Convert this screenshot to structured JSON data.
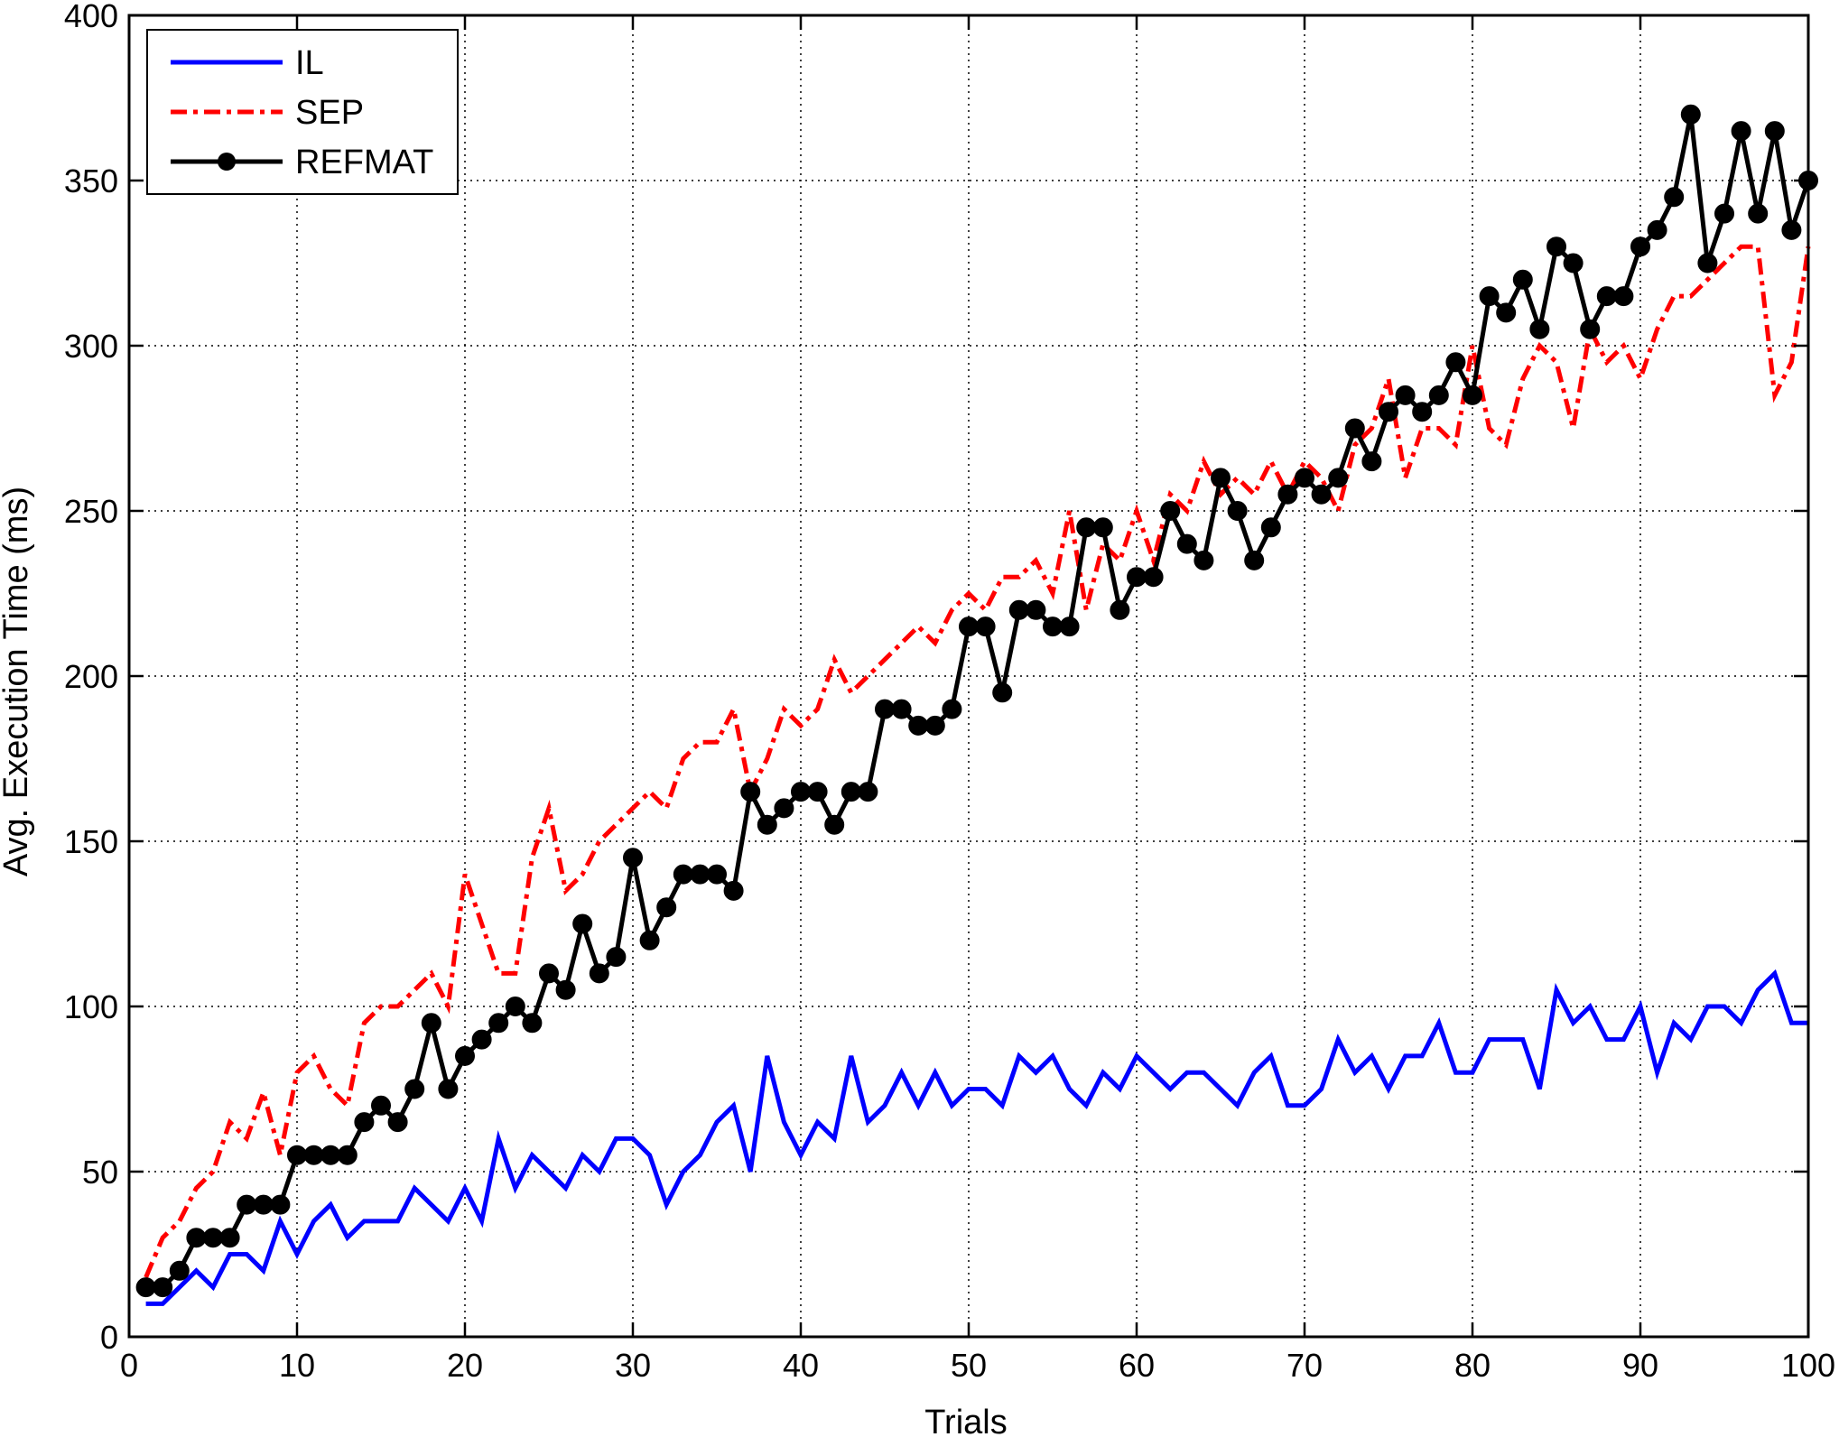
{
  "chart_data": {
    "type": "line",
    "xlabel": "Trials",
    "ylabel": "Avg. Execution Time (ms)",
    "xlim": [
      0,
      100
    ],
    "ylim": [
      0,
      400
    ],
    "xticks": [
      0,
      10,
      20,
      30,
      40,
      50,
      60,
      70,
      80,
      90,
      100
    ],
    "yticks": [
      0,
      50,
      100,
      150,
      200,
      250,
      300,
      350,
      400
    ],
    "xtick_labels": [
      "0",
      "10",
      "20",
      "30",
      "40",
      "50",
      "60",
      "70",
      "80",
      "90",
      "100"
    ],
    "ytick_labels": [
      "0",
      "50",
      "100",
      "150",
      "200",
      "250",
      "300",
      "350",
      "400"
    ],
    "grid": true,
    "legend_position": "top-left",
    "x": [
      1,
      2,
      3,
      4,
      5,
      6,
      7,
      8,
      9,
      10,
      11,
      12,
      13,
      14,
      15,
      16,
      17,
      18,
      19,
      20,
      21,
      22,
      23,
      24,
      25,
      26,
      27,
      28,
      29,
      30,
      31,
      32,
      33,
      34,
      35,
      36,
      37,
      38,
      39,
      40,
      41,
      42,
      43,
      44,
      45,
      46,
      47,
      48,
      49,
      50,
      51,
      52,
      53,
      54,
      55,
      56,
      57,
      58,
      59,
      60,
      61,
      62,
      63,
      64,
      65,
      66,
      67,
      68,
      69,
      70,
      71,
      72,
      73,
      74,
      75,
      76,
      77,
      78,
      79,
      80,
      81,
      82,
      83,
      84,
      85,
      86,
      87,
      88,
      89,
      90,
      91,
      92,
      93,
      94,
      95,
      96,
      97,
      98,
      99,
      100
    ],
    "series": [
      {
        "name": "IL",
        "color": "#0000ff",
        "style": "solid",
        "values": [
          10,
          10,
          15,
          20,
          15,
          25,
          25,
          20,
          35,
          25,
          35,
          40,
          30,
          35,
          35,
          35,
          45,
          40,
          35,
          45,
          35,
          60,
          45,
          55,
          50,
          45,
          55,
          50,
          60,
          60,
          55,
          40,
          50,
          55,
          65,
          70,
          50,
          85,
          65,
          55,
          65,
          60,
          85,
          65,
          70,
          80,
          70,
          80,
          70,
          75,
          75,
          70,
          85,
          80,
          85,
          75,
          70,
          80,
          75,
          85,
          80,
          75,
          80,
          80,
          75,
          70,
          80,
          85,
          70,
          70,
          75,
          90,
          80,
          85,
          75,
          85,
          85,
          95,
          80,
          80,
          90,
          90,
          90,
          75,
          105,
          95,
          100,
          90,
          90,
          100,
          80,
          95,
          90,
          100,
          100,
          95,
          105,
          110,
          95,
          95
        ]
      },
      {
        "name": "SEP",
        "color": "#ff0000",
        "style": "dashdot",
        "values": [
          18,
          30,
          35,
          45,
          50,
          65,
          60,
          74,
          55,
          80,
          85,
          75,
          70,
          95,
          100,
          100,
          105,
          110,
          100,
          140,
          125,
          110,
          110,
          145,
          160,
          135,
          140,
          150,
          155,
          160,
          165,
          160,
          175,
          180,
          180,
          190,
          165,
          175,
          190,
          185,
          190,
          205,
          195,
          200,
          205,
          210,
          215,
          210,
          220,
          225,
          220,
          230,
          230,
          235,
          225,
          250,
          220,
          240,
          235,
          250,
          235,
          255,
          250,
          265,
          255,
          260,
          255,
          265,
          255,
          265,
          260,
          250,
          270,
          275,
          290,
          260,
          275,
          275,
          270,
          300,
          275,
          270,
          290,
          300,
          295,
          275,
          305,
          295,
          300,
          290,
          305,
          315,
          315,
          320,
          325,
          330,
          330,
          285,
          295,
          330
        ]
      },
      {
        "name": "REFMAT",
        "color": "#000000",
        "style": "solid-marker",
        "values": [
          15,
          15,
          20,
          30,
          30,
          30,
          40,
          40,
          40,
          55,
          55,
          55,
          55,
          65,
          70,
          65,
          75,
          95,
          75,
          85,
          90,
          95,
          100,
          95,
          110,
          105,
          125,
          110,
          115,
          145,
          120,
          130,
          140,
          140,
          140,
          135,
          165,
          155,
          160,
          165,
          165,
          155,
          165,
          165,
          190,
          190,
          185,
          185,
          190,
          215,
          215,
          195,
          220,
          220,
          215,
          215,
          245,
          245,
          220,
          230,
          230,
          250,
          240,
          235,
          260,
          250,
          235,
          245,
          255,
          260,
          255,
          260,
          275,
          265,
          280,
          285,
          280,
          285,
          295,
          285,
          315,
          310,
          320,
          305,
          330,
          325,
          305,
          315,
          315,
          330,
          335,
          345,
          370,
          325,
          340,
          365,
          340,
          365,
          335,
          350
        ]
      }
    ]
  }
}
